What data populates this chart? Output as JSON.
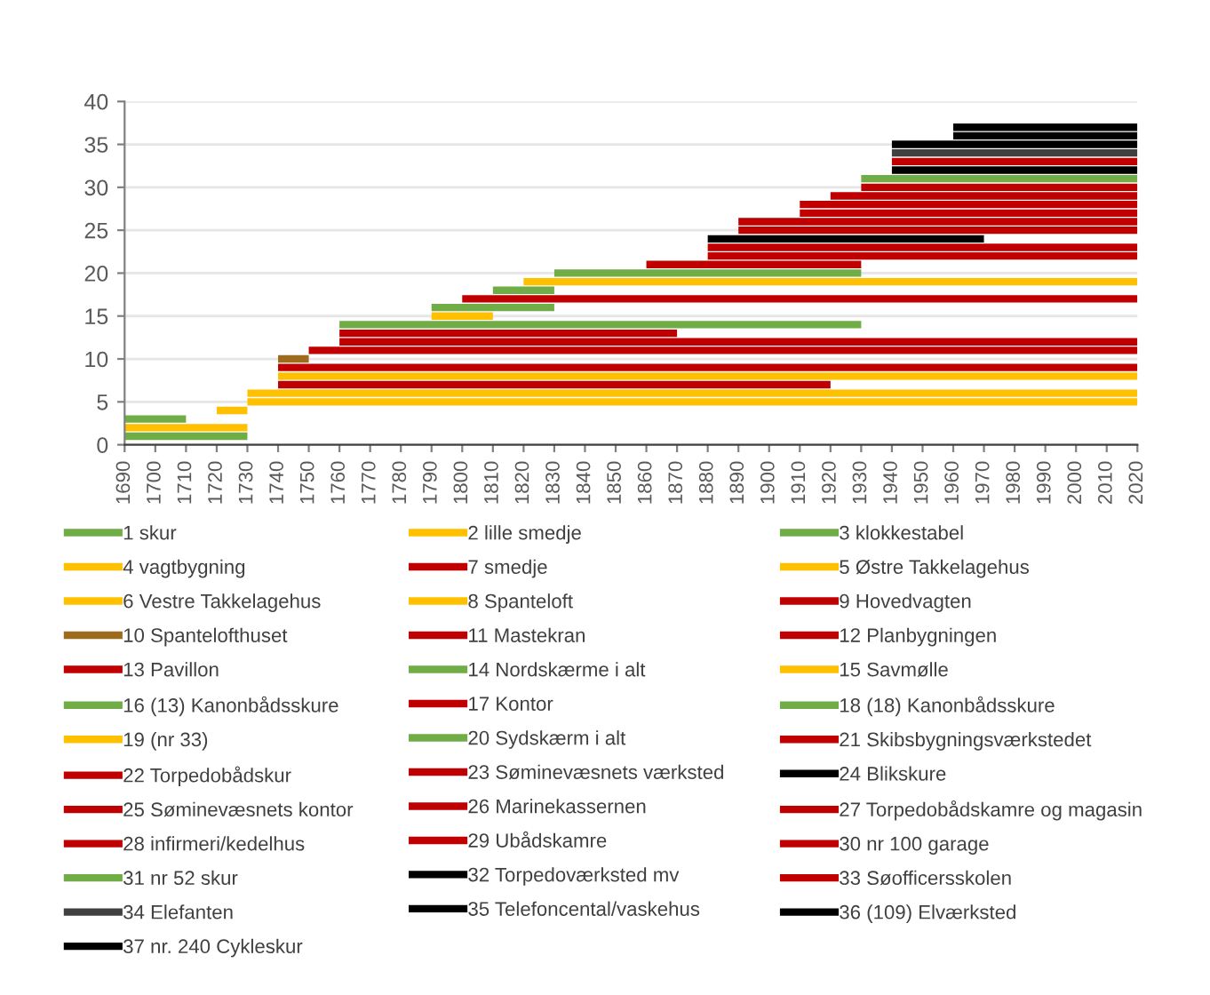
{
  "chart_data": {
    "type": "line",
    "xlim": [
      1690,
      2020
    ],
    "ylim": [
      0,
      40
    ],
    "xticks": [
      1690,
      1700,
      1710,
      1720,
      1730,
      1740,
      1750,
      1760,
      1770,
      1780,
      1790,
      1800,
      1810,
      1820,
      1830,
      1840,
      1850,
      1860,
      1870,
      1880,
      1890,
      1900,
      1910,
      1920,
      1930,
      1940,
      1950,
      1960,
      1970,
      1980,
      1990,
      2000,
      2010,
      2020
    ],
    "yticks": [
      0,
      5,
      10,
      15,
      20,
      25,
      30,
      35,
      40
    ],
    "grid": "y",
    "legend": "bottom",
    "line_style": "solid",
    "series": [
      {
        "name": "1 skur",
        "color": "#70ad47",
        "x": [
          1690,
          1730
        ],
        "values": [
          1,
          1
        ]
      },
      {
        "name": "2 lille smedje",
        "color": "#ffc000",
        "x": [
          1690,
          1730
        ],
        "values": [
          2,
          2
        ]
      },
      {
        "name": "3 klokkestabel",
        "color": "#70ad47",
        "x": [
          1690,
          1710
        ],
        "values": [
          3,
          3
        ]
      },
      {
        "name": "4 vagtbygning",
        "color": "#ffc000",
        "x": [
          1720,
          1730
        ],
        "values": [
          4,
          4
        ]
      },
      {
        "name": "7 smedje",
        "color": "#c00000",
        "x": [
          1740,
          1920
        ],
        "values": [
          7,
          7
        ]
      },
      {
        "name": "5 Østre Takkelagehus",
        "color": "#ffc000",
        "x": [
          1730,
          2020
        ],
        "values": [
          5,
          5
        ]
      },
      {
        "name": "6 Vestre Takkelagehus",
        "color": "#ffc000",
        "x": [
          1730,
          2020
        ],
        "values": [
          6,
          6
        ]
      },
      {
        "name": "8 Spanteloft",
        "color": "#ffc000",
        "x": [
          1740,
          2020
        ],
        "values": [
          8,
          8
        ]
      },
      {
        "name": "9 Hovedvagten",
        "color": "#c00000",
        "x": [
          1740,
          2020
        ],
        "values": [
          9,
          9
        ]
      },
      {
        "name": "10 Spantelofthuset",
        "color": "#9c6b1c",
        "x": [
          1740,
          1750
        ],
        "values": [
          10,
          10
        ]
      },
      {
        "name": "11 Mastekran",
        "color": "#c00000",
        "x": [
          1750,
          2020
        ],
        "values": [
          11,
          11
        ]
      },
      {
        "name": "12 Planbygningen",
        "color": "#c00000",
        "x": [
          1760,
          2020
        ],
        "values": [
          12,
          12
        ]
      },
      {
        "name": "13 Pavillon",
        "color": "#c00000",
        "x": [
          1760,
          1870
        ],
        "values": [
          13,
          13
        ]
      },
      {
        "name": "14 Nordskærme i alt",
        "color": "#70ad47",
        "x": [
          1760,
          1930
        ],
        "values": [
          14,
          14
        ]
      },
      {
        "name": "15 Savmølle",
        "color": "#ffc000",
        "x": [
          1790,
          1810
        ],
        "values": [
          15,
          15
        ]
      },
      {
        "name": "16 (13) Kanonbådsskure",
        "color": "#70ad47",
        "x": [
          1790,
          1830
        ],
        "values": [
          16,
          16
        ]
      },
      {
        "name": "17 Kontor",
        "color": "#c00000",
        "x": [
          1800,
          2020
        ],
        "values": [
          17,
          17
        ]
      },
      {
        "name": "18 (18) Kanonbådsskure",
        "color": "#70ad47",
        "x": [
          1810,
          1830
        ],
        "values": [
          18,
          18
        ]
      },
      {
        "name": "19 (nr 33)",
        "color": "#ffc000",
        "x": [
          1820,
          2020
        ],
        "values": [
          19,
          19
        ]
      },
      {
        "name": "20 Sydskærm i alt",
        "color": "#70ad47",
        "x": [
          1830,
          1930
        ],
        "values": [
          20,
          20
        ]
      },
      {
        "name": "21 Skibsbygningsværkstedet",
        "color": "#c00000",
        "x": [
          1860,
          1930
        ],
        "values": [
          21,
          21
        ]
      },
      {
        "name": "22 Torpedobådskur",
        "color": "#c00000",
        "x": [
          1880,
          2020
        ],
        "values": [
          22,
          22
        ]
      },
      {
        "name": "23 Søminevæsnets værksted",
        "color": "#c00000",
        "x": [
          1880,
          2020
        ],
        "values": [
          23,
          23
        ]
      },
      {
        "name": "24 Blikskure",
        "color": "#000000",
        "x": [
          1880,
          1970
        ],
        "values": [
          24,
          24
        ]
      },
      {
        "name": "25 Søminevæsnets kontor",
        "color": "#c00000",
        "x": [
          1890,
          2020
        ],
        "values": [
          25,
          25
        ]
      },
      {
        "name": "26 Marinekassernen",
        "color": "#c00000",
        "x": [
          1890,
          2020
        ],
        "values": [
          26,
          26
        ]
      },
      {
        "name": "27 Torpedobådskamre og magasin",
        "color": "#c00000",
        "x": [
          1910,
          2020
        ],
        "values": [
          27,
          27
        ]
      },
      {
        "name": "28 infirmeri/kedelhus",
        "color": "#c00000",
        "x": [
          1910,
          2020
        ],
        "values": [
          28,
          28
        ]
      },
      {
        "name": "29 Ubådskamre",
        "color": "#c00000",
        "x": [
          1920,
          2020
        ],
        "values": [
          29,
          29
        ]
      },
      {
        "name": "30 nr 100 garage",
        "color": "#c00000",
        "x": [
          1930,
          2020
        ],
        "values": [
          30,
          30
        ]
      },
      {
        "name": "31 nr 52 skur",
        "color": "#70ad47",
        "x": [
          1930,
          2020
        ],
        "values": [
          31,
          31
        ]
      },
      {
        "name": "32 Torpedoværksted mv",
        "color": "#000000",
        "x": [
          1940,
          2020
        ],
        "values": [
          32,
          32
        ]
      },
      {
        "name": "33 Søofficersskolen",
        "color": "#c00000",
        "x": [
          1940,
          2020
        ],
        "values": [
          33,
          33
        ]
      },
      {
        "name": "34 Elefanten",
        "color": "#404040",
        "x": [
          1940,
          2020
        ],
        "values": [
          34,
          34
        ]
      },
      {
        "name": "35 Telefoncental/vaskehus",
        "color": "#000000",
        "x": [
          1940,
          2020
        ],
        "values": [
          35,
          35
        ]
      },
      {
        "name": "36 (109) Elværksted",
        "color": "#000000",
        "x": [
          1960,
          2020
        ],
        "values": [
          36,
          36
        ]
      },
      {
        "name": "37 nr. 240 Cykleskur",
        "color": "#000000",
        "x": [
          1960,
          2020
        ],
        "values": [
          37,
          37
        ]
      }
    ]
  }
}
